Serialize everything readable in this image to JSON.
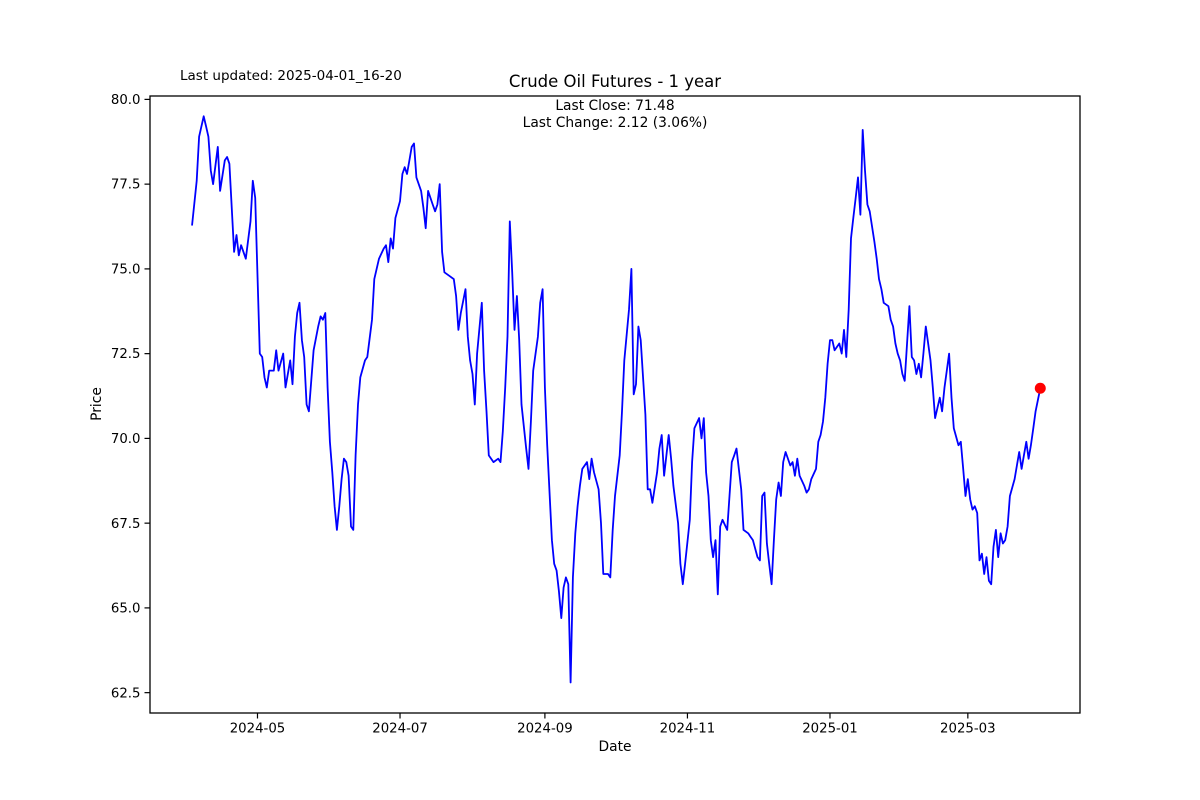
{
  "header": {
    "last_updated": "Last updated: 2025-04-01_16-20",
    "title": "Crude Oil Futures - 1 year",
    "annotation_line1": "Last Close: 71.48",
    "annotation_line2": "Last Change: 2.12 (3.06%)"
  },
  "chart_data": {
    "type": "line",
    "title": "Crude Oil Futures - 1 year",
    "xlabel": "Date",
    "ylabel": "Price",
    "last_close": 71.48,
    "last_change": "2.12 (3.06%)",
    "line_color": "#0000ff",
    "marker_color": "#ff0000",
    "axis_color": "#000000",
    "grid": false,
    "legend_position": "none",
    "ylim": [
      61.9,
      80.1
    ],
    "xlim": [
      "2024-03-16",
      "2025-04-18"
    ],
    "y_ticks": [
      62.5,
      65.0,
      67.5,
      70.0,
      72.5,
      75.0,
      77.5,
      80.0
    ],
    "x_ticks": [
      {
        "label": "2024-05",
        "date": "2024-05-01"
      },
      {
        "label": "2024-07",
        "date": "2024-07-01"
      },
      {
        "label": "2024-09",
        "date": "2024-09-01"
      },
      {
        "label": "2024-11",
        "date": "2024-11-01"
      },
      {
        "label": "2025-01",
        "date": "2025-01-01"
      },
      {
        "label": "2025-03",
        "date": "2025-03-01"
      }
    ],
    "series": [
      [
        "2024-04-03",
        76.3
      ],
      [
        "2024-04-05",
        77.6
      ],
      [
        "2024-04-06",
        78.9
      ],
      [
        "2024-04-08",
        79.5
      ],
      [
        "2024-04-09",
        79.2
      ],
      [
        "2024-04-10",
        78.9
      ],
      [
        "2024-04-11",
        77.9
      ],
      [
        "2024-04-12",
        77.5
      ],
      [
        "2024-04-14",
        78.6
      ],
      [
        "2024-04-15",
        77.3
      ],
      [
        "2024-04-17",
        78.2
      ],
      [
        "2024-04-18",
        78.3
      ],
      [
        "2024-04-19",
        78.1
      ],
      [
        "2024-04-21",
        75.5
      ],
      [
        "2024-04-22",
        76.0
      ],
      [
        "2024-04-23",
        75.4
      ],
      [
        "2024-04-24",
        75.7
      ],
      [
        "2024-04-26",
        75.3
      ],
      [
        "2024-04-28",
        76.4
      ],
      [
        "2024-04-29",
        77.6
      ],
      [
        "2024-04-30",
        77.1
      ],
      [
        "2024-05-02",
        72.5
      ],
      [
        "2024-05-03",
        72.4
      ],
      [
        "2024-05-04",
        71.8
      ],
      [
        "2024-05-05",
        71.5
      ],
      [
        "2024-05-06",
        72.0
      ],
      [
        "2024-05-08",
        72.0
      ],
      [
        "2024-05-09",
        72.6
      ],
      [
        "2024-05-10",
        72.0
      ],
      [
        "2024-05-12",
        72.5
      ],
      [
        "2024-05-13",
        71.5
      ],
      [
        "2024-05-15",
        72.3
      ],
      [
        "2024-05-16",
        71.6
      ],
      [
        "2024-05-17",
        73.0
      ],
      [
        "2024-05-18",
        73.7
      ],
      [
        "2024-05-19",
        74.0
      ],
      [
        "2024-05-20",
        72.9
      ],
      [
        "2024-05-21",
        72.4
      ],
      [
        "2024-05-22",
        71.0
      ],
      [
        "2024-05-23",
        70.8
      ],
      [
        "2024-05-25",
        72.6
      ],
      [
        "2024-05-27",
        73.3
      ],
      [
        "2024-05-28",
        73.6
      ],
      [
        "2024-05-29",
        73.5
      ],
      [
        "2024-05-30",
        73.7
      ],
      [
        "2024-05-31",
        71.5
      ],
      [
        "2024-06-01",
        69.9
      ],
      [
        "2024-06-02",
        69.0
      ],
      [
        "2024-06-03",
        68.0
      ],
      [
        "2024-06-04",
        67.3
      ],
      [
        "2024-06-05",
        68.0
      ],
      [
        "2024-06-06",
        68.8
      ],
      [
        "2024-06-07",
        69.4
      ],
      [
        "2024-06-08",
        69.3
      ],
      [
        "2024-06-09",
        68.9
      ],
      [
        "2024-06-10",
        67.4
      ],
      [
        "2024-06-11",
        67.3
      ],
      [
        "2024-06-12",
        69.5
      ],
      [
        "2024-06-13",
        71.0
      ],
      [
        "2024-06-14",
        71.8
      ],
      [
        "2024-06-16",
        72.3
      ],
      [
        "2024-06-17",
        72.4
      ],
      [
        "2024-06-19",
        73.5
      ],
      [
        "2024-06-20",
        74.7
      ],
      [
        "2024-06-22",
        75.3
      ],
      [
        "2024-06-24",
        75.6
      ],
      [
        "2024-06-25",
        75.7
      ],
      [
        "2024-06-26",
        75.2
      ],
      [
        "2024-06-27",
        75.9
      ],
      [
        "2024-06-28",
        75.6
      ],
      [
        "2024-06-29",
        76.5
      ],
      [
        "2024-07-01",
        77.0
      ],
      [
        "2024-07-02",
        77.8
      ],
      [
        "2024-07-03",
        78.0
      ],
      [
        "2024-07-04",
        77.8
      ],
      [
        "2024-07-05",
        78.2
      ],
      [
        "2024-07-06",
        78.6
      ],
      [
        "2024-07-07",
        78.7
      ],
      [
        "2024-07-08",
        77.7
      ],
      [
        "2024-07-10",
        77.3
      ],
      [
        "2024-07-11",
        76.8
      ],
      [
        "2024-07-12",
        76.2
      ],
      [
        "2024-07-13",
        77.3
      ],
      [
        "2024-07-15",
        76.9
      ],
      [
        "2024-07-16",
        76.7
      ],
      [
        "2024-07-17",
        76.9
      ],
      [
        "2024-07-18",
        77.5
      ],
      [
        "2024-07-19",
        75.5
      ],
      [
        "2024-07-20",
        74.9
      ],
      [
        "2024-07-22",
        74.8
      ],
      [
        "2024-07-24",
        74.7
      ],
      [
        "2024-07-25",
        74.2
      ],
      [
        "2024-07-26",
        73.2
      ],
      [
        "2024-07-27",
        73.7
      ],
      [
        "2024-07-29",
        74.4
      ],
      [
        "2024-07-30",
        73.0
      ],
      [
        "2024-07-31",
        72.3
      ],
      [
        "2024-08-01",
        71.9
      ],
      [
        "2024-08-02",
        71.0
      ],
      [
        "2024-08-03",
        72.5
      ],
      [
        "2024-08-05",
        74.0
      ],
      [
        "2024-08-06",
        72.0
      ],
      [
        "2024-08-07",
        70.8
      ],
      [
        "2024-08-08",
        69.5
      ],
      [
        "2024-08-10",
        69.3
      ],
      [
        "2024-08-12",
        69.4
      ],
      [
        "2024-08-13",
        69.3
      ],
      [
        "2024-08-14",
        70.2
      ],
      [
        "2024-08-15",
        71.5
      ],
      [
        "2024-08-16",
        73.0
      ],
      [
        "2024-08-17",
        76.4
      ],
      [
        "2024-08-18",
        74.9
      ],
      [
        "2024-08-19",
        73.2
      ],
      [
        "2024-08-20",
        74.2
      ],
      [
        "2024-08-21",
        72.9
      ],
      [
        "2024-08-22",
        71.0
      ],
      [
        "2024-08-24",
        69.7
      ],
      [
        "2024-08-25",
        69.1
      ],
      [
        "2024-08-26",
        70.5
      ],
      [
        "2024-08-27",
        72.0
      ],
      [
        "2024-08-29",
        73.0
      ],
      [
        "2024-08-30",
        74.0
      ],
      [
        "2024-08-31",
        74.4
      ],
      [
        "2024-09-01",
        71.5
      ],
      [
        "2024-09-02",
        69.8
      ],
      [
        "2024-09-04",
        67.0
      ],
      [
        "2024-09-05",
        66.3
      ],
      [
        "2024-09-06",
        66.1
      ],
      [
        "2024-09-07",
        65.5
      ],
      [
        "2024-09-08",
        64.7
      ],
      [
        "2024-09-09",
        65.6
      ],
      [
        "2024-09-10",
        65.9
      ],
      [
        "2024-09-11",
        65.7
      ],
      [
        "2024-09-12",
        62.8
      ],
      [
        "2024-09-13",
        65.9
      ],
      [
        "2024-09-14",
        67.2
      ],
      [
        "2024-09-15",
        68.0
      ],
      [
        "2024-09-16",
        68.6
      ],
      [
        "2024-09-17",
        69.1
      ],
      [
        "2024-09-19",
        69.3
      ],
      [
        "2024-09-20",
        68.8
      ],
      [
        "2024-09-21",
        69.4
      ],
      [
        "2024-09-22",
        69.0
      ],
      [
        "2024-09-24",
        68.5
      ],
      [
        "2024-09-25",
        67.5
      ],
      [
        "2024-09-26",
        66.0
      ],
      [
        "2024-09-28",
        66.0
      ],
      [
        "2024-09-29",
        65.9
      ],
      [
        "2024-09-30",
        67.3
      ],
      [
        "2024-10-01",
        68.3
      ],
      [
        "2024-10-03",
        69.5
      ],
      [
        "2024-10-04",
        70.8
      ],
      [
        "2024-10-05",
        72.3
      ],
      [
        "2024-10-07",
        73.8
      ],
      [
        "2024-10-08",
        75.0
      ],
      [
        "2024-10-09",
        71.3
      ],
      [
        "2024-10-10",
        71.6
      ],
      [
        "2024-10-11",
        73.3
      ],
      [
        "2024-10-12",
        72.9
      ],
      [
        "2024-10-14",
        70.7
      ],
      [
        "2024-10-15",
        68.5
      ],
      [
        "2024-10-16",
        68.5
      ],
      [
        "2024-10-17",
        68.1
      ],
      [
        "2024-10-19",
        69.0
      ],
      [
        "2024-10-20",
        69.7
      ],
      [
        "2024-10-21",
        70.1
      ],
      [
        "2024-10-22",
        68.9
      ],
      [
        "2024-10-24",
        70.1
      ],
      [
        "2024-10-25",
        69.4
      ],
      [
        "2024-10-26",
        68.6
      ],
      [
        "2024-10-28",
        67.5
      ],
      [
        "2024-10-29",
        66.3
      ],
      [
        "2024-10-30",
        65.7
      ],
      [
        "2024-10-31",
        66.3
      ],
      [
        "2024-11-02",
        67.6
      ],
      [
        "2024-11-03",
        69.3
      ],
      [
        "2024-11-04",
        70.3
      ],
      [
        "2024-11-06",
        70.6
      ],
      [
        "2024-11-07",
        70.0
      ],
      [
        "2024-11-08",
        70.6
      ],
      [
        "2024-11-09",
        69.0
      ],
      [
        "2024-11-10",
        68.3
      ],
      [
        "2024-11-11",
        67.0
      ],
      [
        "2024-11-12",
        66.5
      ],
      [
        "2024-11-13",
        67.0
      ],
      [
        "2024-11-14",
        65.4
      ],
      [
        "2024-11-15",
        67.4
      ],
      [
        "2024-11-16",
        67.6
      ],
      [
        "2024-11-18",
        67.3
      ],
      [
        "2024-11-19",
        68.3
      ],
      [
        "2024-11-20",
        69.3
      ],
      [
        "2024-11-21",
        69.5
      ],
      [
        "2024-11-22",
        69.7
      ],
      [
        "2024-11-24",
        68.5
      ],
      [
        "2024-11-25",
        67.3
      ],
      [
        "2024-11-27",
        67.2
      ],
      [
        "2024-11-28",
        67.1
      ],
      [
        "2024-11-29",
        67.0
      ],
      [
        "2024-12-01",
        66.5
      ],
      [
        "2024-12-02",
        66.4
      ],
      [
        "2024-12-03",
        68.3
      ],
      [
        "2024-12-04",
        68.4
      ],
      [
        "2024-12-05",
        66.9
      ],
      [
        "2024-12-06",
        66.3
      ],
      [
        "2024-12-07",
        65.7
      ],
      [
        "2024-12-08",
        67.0
      ],
      [
        "2024-12-09",
        68.2
      ],
      [
        "2024-12-10",
        68.7
      ],
      [
        "2024-12-11",
        68.3
      ],
      [
        "2024-12-12",
        69.3
      ],
      [
        "2024-12-13",
        69.6
      ],
      [
        "2024-12-15",
        69.2
      ],
      [
        "2024-12-16",
        69.3
      ],
      [
        "2024-12-17",
        68.9
      ],
      [
        "2024-12-18",
        69.4
      ],
      [
        "2024-12-19",
        68.9
      ],
      [
        "2024-12-21",
        68.6
      ],
      [
        "2024-12-22",
        68.4
      ],
      [
        "2024-12-23",
        68.5
      ],
      [
        "2024-12-24",
        68.8
      ],
      [
        "2024-12-26",
        69.1
      ],
      [
        "2024-12-27",
        69.9
      ],
      [
        "2024-12-28",
        70.1
      ],
      [
        "2024-12-29",
        70.5
      ],
      [
        "2024-12-30",
        71.2
      ],
      [
        "2024-12-31",
        72.2
      ],
      [
        "2025-01-01",
        72.9
      ],
      [
        "2025-01-02",
        72.9
      ],
      [
        "2025-01-03",
        72.6
      ],
      [
        "2025-01-05",
        72.8
      ],
      [
        "2025-01-06",
        72.5
      ],
      [
        "2025-01-07",
        73.2
      ],
      [
        "2025-01-08",
        72.4
      ],
      [
        "2025-01-09",
        73.8
      ],
      [
        "2025-01-10",
        75.9
      ],
      [
        "2025-01-11",
        76.5
      ],
      [
        "2025-01-12",
        77.1
      ],
      [
        "2025-01-13",
        77.7
      ],
      [
        "2025-01-14",
        76.6
      ],
      [
        "2025-01-15",
        79.1
      ],
      [
        "2025-01-16",
        77.9
      ],
      [
        "2025-01-17",
        76.9
      ],
      [
        "2025-01-18",
        76.7
      ],
      [
        "2025-01-20",
        75.8
      ],
      [
        "2025-01-21",
        75.3
      ],
      [
        "2025-01-22",
        74.7
      ],
      [
        "2025-01-23",
        74.4
      ],
      [
        "2025-01-24",
        74.0
      ],
      [
        "2025-01-26",
        73.9
      ],
      [
        "2025-01-27",
        73.5
      ],
      [
        "2025-01-28",
        73.3
      ],
      [
        "2025-01-29",
        72.8
      ],
      [
        "2025-01-30",
        72.5
      ],
      [
        "2025-01-31",
        72.3
      ],
      [
        "2025-02-01",
        71.9
      ],
      [
        "2025-02-02",
        71.7
      ],
      [
        "2025-02-04",
        73.9
      ],
      [
        "2025-02-05",
        72.4
      ],
      [
        "2025-02-06",
        72.3
      ],
      [
        "2025-02-07",
        71.9
      ],
      [
        "2025-02-08",
        72.2
      ],
      [
        "2025-02-09",
        71.8
      ],
      [
        "2025-02-10",
        72.5
      ],
      [
        "2025-02-11",
        73.3
      ],
      [
        "2025-02-13",
        72.3
      ],
      [
        "2025-02-14",
        71.5
      ],
      [
        "2025-02-15",
        70.6
      ],
      [
        "2025-02-17",
        71.2
      ],
      [
        "2025-02-18",
        70.8
      ],
      [
        "2025-02-19",
        71.5
      ],
      [
        "2025-02-20",
        72.0
      ],
      [
        "2025-02-21",
        72.5
      ],
      [
        "2025-02-22",
        71.2
      ],
      [
        "2025-02-23",
        70.3
      ],
      [
        "2025-02-25",
        69.8
      ],
      [
        "2025-02-26",
        69.9
      ],
      [
        "2025-02-27",
        69.1
      ],
      [
        "2025-02-28",
        68.3
      ],
      [
        "2025-03-01",
        68.8
      ],
      [
        "2025-03-02",
        68.2
      ],
      [
        "2025-03-03",
        67.9
      ],
      [
        "2025-03-04",
        68.0
      ],
      [
        "2025-03-05",
        67.8
      ],
      [
        "2025-03-06",
        66.4
      ],
      [
        "2025-03-07",
        66.6
      ],
      [
        "2025-03-08",
        66.0
      ],
      [
        "2025-03-09",
        66.5
      ],
      [
        "2025-03-10",
        65.8
      ],
      [
        "2025-03-11",
        65.7
      ],
      [
        "2025-03-12",
        66.8
      ],
      [
        "2025-03-13",
        67.3
      ],
      [
        "2025-03-14",
        66.5
      ],
      [
        "2025-03-15",
        67.2
      ],
      [
        "2025-03-16",
        66.9
      ],
      [
        "2025-03-17",
        67.0
      ],
      [
        "2025-03-18",
        67.4
      ],
      [
        "2025-03-19",
        68.3
      ],
      [
        "2025-03-21",
        68.8
      ],
      [
        "2025-03-22",
        69.2
      ],
      [
        "2025-03-23",
        69.6
      ],
      [
        "2025-03-24",
        69.1
      ],
      [
        "2025-03-25",
        69.5
      ],
      [
        "2025-03-26",
        69.9
      ],
      [
        "2025-03-27",
        69.4
      ],
      [
        "2025-03-28",
        69.8
      ],
      [
        "2025-03-29",
        70.3
      ],
      [
        "2025-03-30",
        70.8
      ],
      [
        "2025-04-01",
        71.48
      ]
    ]
  }
}
